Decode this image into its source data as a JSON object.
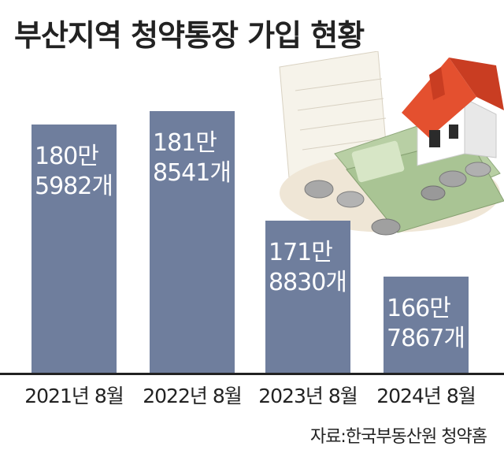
{
  "title": "부산지역 청약통장 가입 현황",
  "source": "자료:한국부동산원 청약홈",
  "chart_data": {
    "type": "bar",
    "title": "부산지역 청약통장 가입 현황",
    "categories": [
      "2021년 8월",
      "2022년 8월",
      "2023년 8월",
      "2024년 8월"
    ],
    "values": [
      1805982,
      1818541,
      1718830,
      1667867
    ],
    "data_labels": [
      [
        "180만",
        "5982개"
      ],
      [
        "181만",
        "8541개"
      ],
      [
        "171만",
        "8830개"
      ],
      [
        "166만",
        "7867개"
      ]
    ],
    "colors": {
      "bar": "#6f7e9d",
      "label": "#ffffff"
    }
  },
  "illustration": {
    "icon_name": "house-on-banknotes-and-coins-icon"
  }
}
